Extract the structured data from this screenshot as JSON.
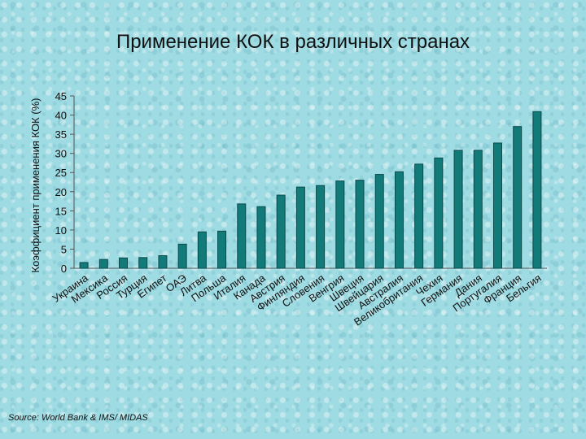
{
  "title": "Применение КОК в различных странах",
  "source": "Source: World Bank & IMS/ MIDAS",
  "colors": {
    "bar": "#137a7a",
    "bar_edge": "#0a4a4a",
    "axis": "#555555"
  },
  "chart_data": {
    "type": "bar",
    "title": "Применение КОК в различных странах",
    "ylabel": "Коэффициент применения КОК (%)",
    "xlabel": "",
    "ylim": [
      0,
      45
    ],
    "yticks": [
      0,
      5,
      10,
      15,
      20,
      25,
      30,
      35,
      40,
      45
    ],
    "grid": false,
    "categories": [
      "Украина",
      "Мексика",
      "Россия",
      "Турция",
      "Египет",
      "ОАЭ",
      "Литва",
      "Польша",
      "Италия",
      "Канада",
      "Австрия",
      "Финляндия",
      "Словения",
      "Венгрия",
      "Швеция",
      "Швейцария",
      "Австралия",
      "Великобритания",
      "Чехия",
      "Германия",
      "Дания",
      "Португалия",
      "Франция",
      "Бельгия"
    ],
    "values": [
      1.5,
      2.3,
      2.7,
      2.8,
      3.3,
      6.3,
      9.5,
      9.7,
      16.8,
      16.1,
      19.1,
      21.2,
      21.6,
      22.8,
      23.0,
      24.5,
      25.2,
      27.2,
      28.8,
      30.8,
      30.8,
      32.7,
      37.0,
      40.9
    ]
  }
}
